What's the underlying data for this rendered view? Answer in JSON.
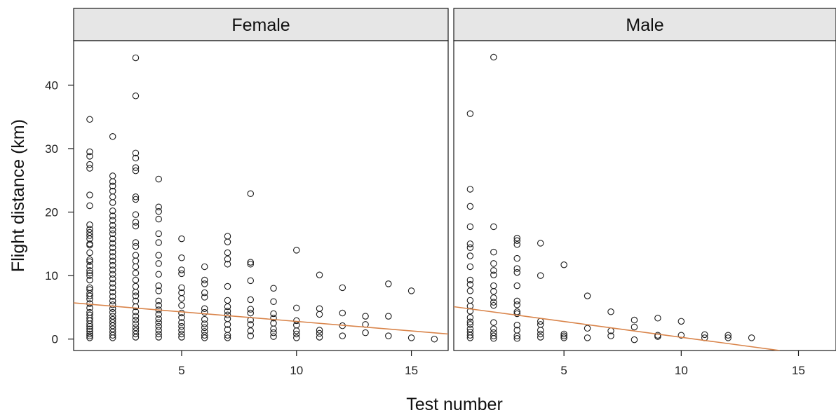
{
  "chart_data": {
    "type": "scatter",
    "xlabel": "Test number",
    "ylabel": "Flight distance (km)",
    "xlim": [
      0.3,
      16.6
    ],
    "ylim": [
      -1.8,
      47
    ],
    "x_ticks": [
      5,
      10,
      15
    ],
    "y_ticks": [
      0,
      10,
      20,
      30,
      40
    ],
    "grid": false,
    "fit_line_color": "#d9844a",
    "point_color": "#1a1a1a",
    "strip_color": "#e6e6e6",
    "panels": [
      {
        "name": "Female",
        "fit": {
          "x": [
            0.3,
            16.6
          ],
          "y": [
            5.7,
            0.8
          ]
        },
        "series": [
          {
            "x": 1,
            "y": [
              34.6,
              29.5,
              28.8,
              27.5,
              26.9,
              22.7,
              21.0,
              18.0,
              17.3,
              16.8,
              16.3,
              15.8,
              15.0,
              14.8,
              13.6,
              12.5,
              12.2,
              11.5,
              10.8,
              10.4,
              10.0,
              9.3,
              8.1,
              7.8,
              7.2,
              6.8,
              6.3,
              5.6,
              4.9,
              4.2,
              3.8,
              3.3,
              2.9,
              2.4,
              2.0,
              1.6,
              1.2,
              0.8,
              0.5,
              0.2
            ]
          },
          {
            "x": 2,
            "y": [
              31.9,
              25.7,
              24.8,
              24.1,
              23.3,
              22.4,
              21.5,
              20.2,
              19.4,
              18.7,
              17.9,
              17.2,
              16.6,
              15.8,
              15.1,
              14.4,
              13.7,
              13.0,
              12.3,
              11.6,
              10.9,
              10.2,
              9.5,
              8.8,
              8.1,
              7.4,
              6.7,
              6.0,
              5.4,
              4.8,
              4.2,
              3.6,
              3.1,
              2.6,
              2.1,
              1.6,
              1.1,
              0.6,
              0.2
            ]
          },
          {
            "x": 3,
            "y": [
              44.3,
              38.3,
              29.3,
              28.5,
              27.0,
              26.5,
              22.4,
              22.0,
              19.6,
              18.4,
              17.8,
              15.2,
              14.6,
              13.2,
              12.3,
              11.4,
              10.4,
              9.3,
              8.3,
              7.4,
              6.8,
              6.0,
              5.1,
              4.3,
              3.6,
              3.0,
              2.4,
              1.8,
              1.3,
              0.8,
              0.3
            ]
          },
          {
            "x": 4,
            "y": [
              25.2,
              20.8,
              20.1,
              18.9,
              16.6,
              15.2,
              13.2,
              11.9,
              10.2,
              8.4,
              7.6,
              6.0,
              5.3,
              4.6,
              3.9,
              3.2,
              2.6,
              2.0,
              1.4,
              0.8,
              0.3
            ]
          },
          {
            "x": 5,
            "y": [
              15.8,
              12.8,
              10.9,
              10.3,
              8.1,
              7.3,
              6.4,
              5.3,
              4.1,
              3.4,
              2.6,
              2.0,
              1.4,
              0.8,
              0.3
            ]
          },
          {
            "x": 6,
            "y": [
              11.4,
              9.3,
              8.7,
              7.3,
              6.6,
              4.8,
              4.2,
              3.1,
              2.4,
              1.8,
              1.2,
              0.6,
              0.2
            ]
          },
          {
            "x": 7,
            "y": [
              16.2,
              15.3,
              13.6,
              12.6,
              11.8,
              8.3,
              6.1,
              5.1,
              4.4,
              3.8,
              3.2,
              2.3,
              1.5,
              0.6,
              0.2
            ]
          },
          {
            "x": 8,
            "y": [
              22.9,
              12.1,
              11.8,
              9.2,
              6.2,
              4.7,
              4.1,
              3.0,
              2.3,
              1.3,
              0.5
            ]
          },
          {
            "x": 9,
            "y": [
              8.0,
              5.9,
              4.0,
              3.3,
              2.5,
              1.6,
              1.0,
              0.4
            ]
          },
          {
            "x": 10,
            "y": [
              14.0,
              4.9,
              2.9,
              2.2,
              1.3,
              0.8,
              0.2
            ]
          },
          {
            "x": 11,
            "y": [
              10.1,
              4.8,
              3.9,
              1.4,
              0.9,
              0.3
            ]
          },
          {
            "x": 12,
            "y": [
              8.1,
              4.1,
              2.1,
              0.5
            ]
          },
          {
            "x": 13,
            "y": [
              3.6,
              2.3,
              1.0
            ]
          },
          {
            "x": 14,
            "y": [
              8.7,
              3.6,
              0.5
            ]
          },
          {
            "x": 15,
            "y": [
              7.6,
              0.2
            ]
          },
          {
            "x": 16,
            "y": [
              0.0
            ]
          }
        ]
      },
      {
        "name": "Male",
        "fit": {
          "x": [
            0.3,
            14.2
          ],
          "y": [
            5.1,
            -1.8
          ]
        },
        "series": [
          {
            "x": 1,
            "y": [
              35.5,
              23.6,
              20.9,
              17.7,
              15.0,
              14.4,
              13.1,
              11.4,
              9.3,
              8.6,
              7.6,
              6.1,
              5.2,
              4.4,
              3.4,
              2.7,
              2.3,
              1.6,
              1.1,
              0.6,
              0.2
            ]
          },
          {
            "x": 2,
            "y": [
              44.4,
              17.7,
              13.7,
              11.9,
              10.8,
              10.1,
              8.4,
              7.5,
              6.5,
              5.8,
              5.3,
              2.6,
              1.6,
              1.0,
              0.5,
              0.1
            ]
          },
          {
            "x": 3,
            "y": [
              15.9,
              15.5,
              14.9,
              12.7,
              11.1,
              10.5,
              8.4,
              6.0,
              5.4,
              4.3,
              4.0,
              2.2,
              1.4,
              0.5,
              0.1
            ]
          },
          {
            "x": 4,
            "y": [
              15.1,
              10.0,
              2.8,
              2.3,
              1.4,
              0.8,
              0.3
            ]
          },
          {
            "x": 5,
            "y": [
              11.7,
              0.8,
              0.5,
              0.2
            ]
          },
          {
            "x": 6,
            "y": [
              6.8,
              1.7,
              0.2
            ]
          },
          {
            "x": 7,
            "y": [
              4.3,
              1.3,
              0.5
            ]
          },
          {
            "x": 8,
            "y": [
              3.0,
              1.9,
              -0.1
            ]
          },
          {
            "x": 9,
            "y": [
              3.3,
              0.6,
              0.4
            ]
          },
          {
            "x": 10,
            "y": [
              2.8,
              0.6
            ]
          },
          {
            "x": 11,
            "y": [
              0.7,
              0.2
            ]
          },
          {
            "x": 12,
            "y": [
              0.6,
              0.2
            ]
          },
          {
            "x": 13,
            "y": [
              0.2
            ]
          }
        ]
      }
    ]
  }
}
